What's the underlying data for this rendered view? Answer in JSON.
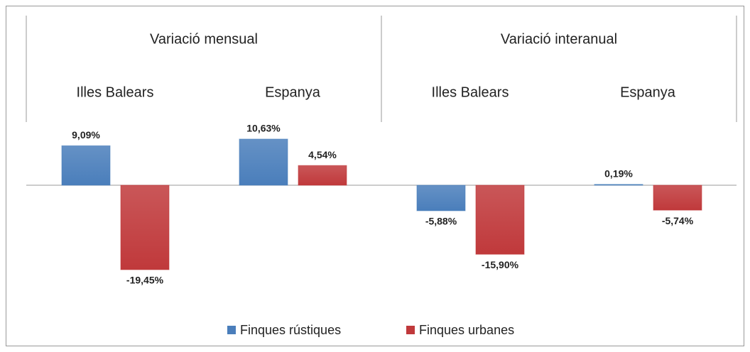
{
  "chart_data": {
    "type": "bar",
    "category_groups": [
      "Variació mensual",
      "Variació interanual"
    ],
    "categories": [
      "Illes Balears",
      "Espanya",
      "Illes Balears",
      "Espanya"
    ],
    "series": [
      {
        "name": "Finques rústiques",
        "color": "#4a7ebb",
        "values": [
          9.09,
          10.63,
          -5.88,
          0.19
        ],
        "value_labels": [
          "9,09%",
          "10,63%",
          "-5,88%",
          "0,19%"
        ]
      },
      {
        "name": "Finques urbanes",
        "color": "#c0393b",
        "values": [
          -19.45,
          4.54,
          -15.9,
          -5.74
        ],
        "value_labels": [
          "-19,45%",
          "4,54%",
          "-15,90%",
          "-5,74%"
        ]
      }
    ],
    "legend": "bottom"
  }
}
